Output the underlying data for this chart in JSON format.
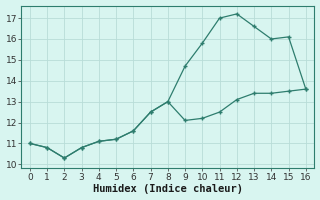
{
  "xlabel": "Humidex (Indice chaleur)",
  "line1_x": [
    0,
    1,
    2,
    3,
    4,
    5,
    6,
    7,
    8,
    9,
    10,
    11,
    12,
    13,
    14,
    15,
    16
  ],
  "line1_y": [
    11.0,
    10.8,
    10.3,
    10.8,
    11.1,
    11.2,
    11.6,
    12.5,
    13.0,
    12.1,
    12.2,
    12.5,
    13.1,
    13.4,
    13.4,
    13.5,
    13.6
  ],
  "line2_x": [
    0,
    1,
    2,
    3,
    4,
    5,
    6,
    7,
    8,
    9,
    10,
    11,
    12,
    13,
    14,
    15,
    16
  ],
  "line2_y": [
    11.0,
    10.8,
    10.3,
    10.8,
    11.1,
    11.2,
    11.6,
    12.5,
    13.0,
    14.7,
    15.8,
    17.0,
    17.2,
    16.6,
    16.0,
    16.1,
    13.6
  ],
  "line_color": "#2E7D6E",
  "bg_color": "#d8f5f0",
  "grid_color": "#b8ddd8",
  "ylim": [
    9.8,
    17.6
  ],
  "xlim": [
    -0.5,
    16.5
  ],
  "yticks": [
    10,
    11,
    12,
    13,
    14,
    15,
    16,
    17
  ],
  "xticks": [
    0,
    1,
    2,
    3,
    4,
    5,
    6,
    7,
    8,
    9,
    10,
    11,
    12,
    13,
    14,
    15,
    16
  ],
  "tick_fontsize": 6.5,
  "label_fontsize": 7.5
}
